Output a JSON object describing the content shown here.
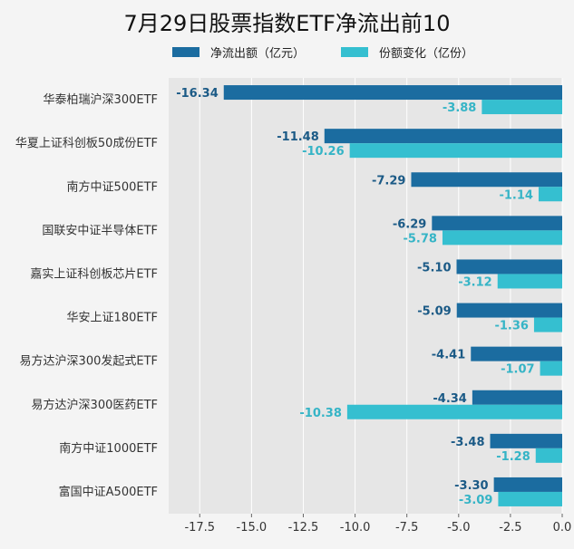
{
  "chart_data": {
    "type": "bar",
    "orientation": "horizontal",
    "title": "7月29日股票指数ETF净流出前10",
    "categories": [
      "华泰柏瑞沪深300ETF",
      "华夏上证科创板50成份ETF",
      "南方中证500ETF",
      "国联安中证半导体ETF",
      "嘉实上证科创板芯片ETF",
      "华安上证180ETF",
      "易方达沪深300发起式ETF",
      "易方达沪深300医药ETF",
      "南方中证1000ETF",
      "富国中证A500ETF"
    ],
    "series": [
      {
        "name": "净流出额（亿元）",
        "color": "#1b6ca0",
        "values": [
          -16.34,
          -11.48,
          -7.29,
          -6.29,
          -5.1,
          -5.09,
          -4.41,
          -4.34,
          -3.48,
          -3.3
        ],
        "labels": [
          "-16.34",
          "-11.48",
          "-7.29",
          "-6.29",
          "-5.10",
          "-5.09",
          "-4.41",
          "-4.34",
          "-3.48",
          "-3.30"
        ]
      },
      {
        "name": "份额变化（亿份）",
        "color": "#35bfd0",
        "values": [
          -3.88,
          -10.26,
          -1.14,
          -5.78,
          -3.12,
          -1.36,
          -1.07,
          -10.38,
          -1.28,
          -3.09
        ],
        "labels": [
          "-3.88",
          "-10.26",
          "-1.14",
          "-5.78",
          "-3.12",
          "-1.36",
          "-1.07",
          "-10.38",
          "-1.28",
          "-3.09"
        ]
      }
    ],
    "xlim": [
      -19,
      0
    ],
    "xticks": [
      -17.5,
      -15.0,
      -12.5,
      -10.0,
      -7.5,
      -5.0,
      -2.5,
      0.0
    ],
    "xtick_labels": [
      "-17.5",
      "-15.0",
      "-12.5",
      "-10.0",
      "-7.5",
      "-5.0",
      "-2.5",
      "0.0"
    ],
    "grid": true,
    "legend_position": "top"
  }
}
